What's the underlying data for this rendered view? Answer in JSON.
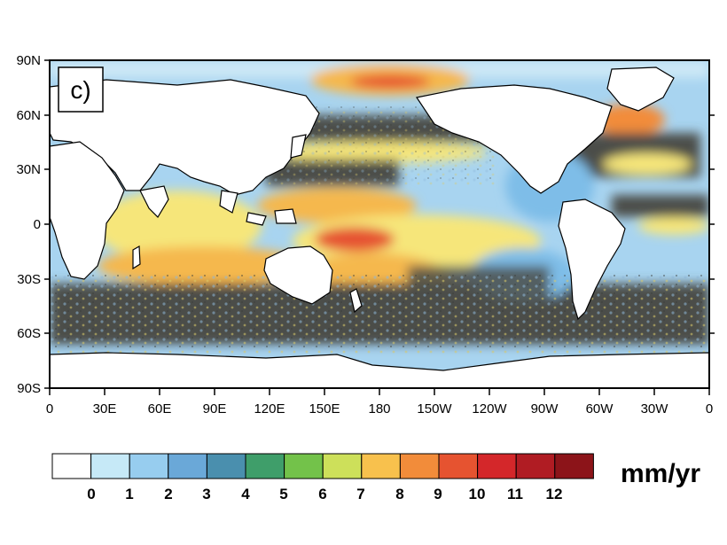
{
  "panel_label": "c)",
  "units": "mm/yr",
  "lat_ticks": [
    "90N",
    "60N",
    "30N",
    "0",
    "30S",
    "60S",
    "90S"
  ],
  "lon_ticks": [
    "0",
    "30E",
    "60E",
    "90E",
    "120E",
    "150E",
    "180",
    "150W",
    "120W",
    "90W",
    "60W",
    "30W",
    "0"
  ],
  "colorbar": {
    "levels": [
      "0",
      "1",
      "2",
      "3",
      "4",
      "5",
      "6",
      "7",
      "8",
      "9",
      "10",
      "11",
      "12"
    ],
    "colors": [
      "#ffffff",
      "#c6e9f7",
      "#97cdef",
      "#6aa8d8",
      "#4a8fae",
      "#3f9e6a",
      "#73c24a",
      "#cde05a",
      "#f8c14d",
      "#f28c3a",
      "#e65330",
      "#d4272a",
      "#b01c23",
      "#8c1419"
    ]
  },
  "colors": {
    "ocean_dark": "#4b4e4a",
    "ocean_light_blue": "#a8d4f0",
    "ocean_mid_blue": "#7ebde8",
    "yellow": "#f6e67a",
    "orange": "#f5b84d",
    "land": "#ffffff",
    "coast": "#000000"
  }
}
